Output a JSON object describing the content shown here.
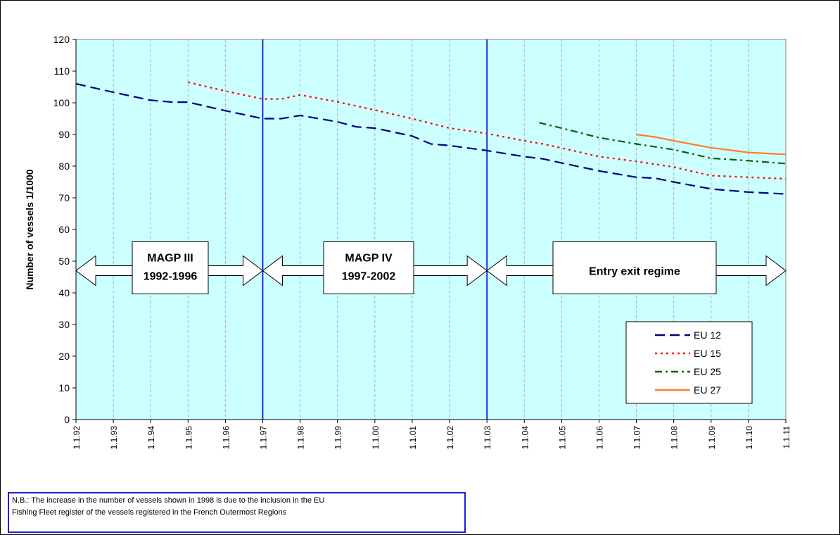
{
  "chart_data": {
    "type": "line",
    "ylabel": "Number of vessels 1/1000",
    "xlabel": "",
    "ylim": [
      0,
      120
    ],
    "yticks": [
      0,
      10,
      20,
      30,
      40,
      50,
      60,
      70,
      80,
      90,
      100,
      110,
      120
    ],
    "xticks": [
      "1.1.92",
      "1.1.93",
      "1.1.94",
      "1.1.95",
      "1.1.96",
      "1.1.97",
      "1.1.98",
      "1.1.99",
      "1.1.00",
      "1.1.01",
      "1.1.02",
      "1.1.03",
      "1.1.04",
      "1.1.05",
      "1.1.06",
      "1.1.07",
      "1.1.08",
      "1.1.09",
      "1.1.10",
      "1.1.11"
    ],
    "grid": "vertical dashed",
    "plot_background": "#ccffff",
    "vertical_markers": [
      "1.1.97",
      "1.1.03"
    ],
    "series": [
      {
        "name": "EU 12",
        "color": "#000080",
        "dash": "long-dash",
        "points": [
          [
            1992.0,
            106
          ],
          [
            1993.0,
            103.3
          ],
          [
            1994.0,
            100.8
          ],
          [
            1994.6,
            100.2
          ],
          [
            1995.0,
            100.2
          ],
          [
            1996.0,
            97.5
          ],
          [
            1997.0,
            95
          ],
          [
            1997.5,
            95
          ],
          [
            1998.0,
            96
          ],
          [
            1999.0,
            94
          ],
          [
            1999.5,
            92.4
          ],
          [
            2000.0,
            92
          ],
          [
            2001.0,
            89.5
          ],
          [
            2001.5,
            87
          ],
          [
            2002.0,
            86.5
          ],
          [
            2003.0,
            84.9
          ],
          [
            2004.0,
            83
          ],
          [
            2004.5,
            82.3
          ],
          [
            2005.0,
            81
          ],
          [
            2006.0,
            78.5
          ],
          [
            2007.0,
            76.5
          ],
          [
            2007.5,
            76.2
          ],
          [
            2008.0,
            75
          ],
          [
            2009.0,
            72.8
          ],
          [
            2010.0,
            71.8
          ],
          [
            2011.0,
            71.2
          ]
        ]
      },
      {
        "name": "EU 15",
        "color": "#ff0000",
        "dash": "dotted",
        "points": [
          [
            1995.0,
            106.5
          ],
          [
            1996.0,
            103.7
          ],
          [
            1997.0,
            101.2
          ],
          [
            1997.5,
            101.2
          ],
          [
            1998.0,
            102.5
          ],
          [
            1999.0,
            100.3
          ],
          [
            2000.0,
            97.7
          ],
          [
            2001.0,
            95
          ],
          [
            2002.0,
            92
          ],
          [
            2003.0,
            90.3
          ],
          [
            2004.0,
            88
          ],
          [
            2004.5,
            87
          ],
          [
            2005.0,
            85.7
          ],
          [
            2006.0,
            83
          ],
          [
            2007.0,
            81.5
          ],
          [
            2008.0,
            79.7
          ],
          [
            2009.0,
            77
          ],
          [
            2010.0,
            76.5
          ],
          [
            2011.0,
            76
          ]
        ]
      },
      {
        "name": "EU 25",
        "color": "#006400",
        "dash": "dash-dot",
        "points": [
          [
            2004.4,
            93.7
          ],
          [
            2005.0,
            92
          ],
          [
            2006.0,
            89
          ],
          [
            2007.0,
            87
          ],
          [
            2008.0,
            85.2
          ],
          [
            2009.0,
            82.5
          ],
          [
            2010.0,
            81.7
          ],
          [
            2011.0,
            80.8
          ]
        ]
      },
      {
        "name": "EU 27",
        "color": "#ff7f27",
        "dash": "solid",
        "points": [
          [
            2007.0,
            90
          ],
          [
            2007.5,
            89.2
          ],
          [
            2008.0,
            88
          ],
          [
            2009.0,
            85.8
          ],
          [
            2010.0,
            84.3
          ],
          [
            2011.0,
            83.7
          ]
        ]
      }
    ],
    "annotations": [
      {
        "line1": "MAGP III",
        "line2": "1992-1996"
      },
      {
        "line1": "MAGP IV",
        "line2": "1997-2002"
      },
      {
        "line1": "Entry exit regime",
        "line2": ""
      }
    ],
    "legend_position": "bottom-right"
  },
  "note": {
    "line1": "N.B.: The increase in the number of vessels shown in 1998 is due to the inclusion in the EU",
    "line2": "Fishing Fleet register of the vessels registered in the French Outermost Regions"
  }
}
